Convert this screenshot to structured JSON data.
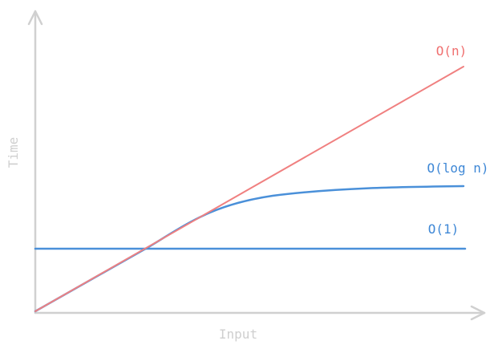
{
  "axes": {
    "y_label": "Time",
    "x_label": "Input"
  },
  "curves": [
    {
      "label": "O(n)"
    },
    {
      "label": "O(log n)"
    },
    {
      "label": "O(1)"
    }
  ]
}
